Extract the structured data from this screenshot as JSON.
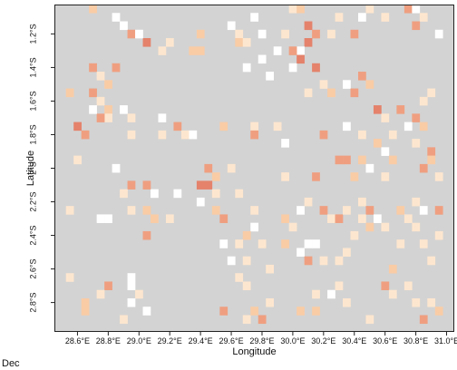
{
  "chart_data": {
    "type": "heatmap",
    "panel_label": "Dec",
    "xlabel": "Longitude",
    "ylabel": "Latitude",
    "xlim": [
      28.45,
      31.05
    ],
    "ylim": [
      -2.975,
      -1.025
    ],
    "grid": false,
    "x_ticks": [
      {
        "value": 28.6,
        "label": "28.6°E"
      },
      {
        "value": 28.8,
        "label": "28.8°E"
      },
      {
        "value": 29.0,
        "label": "29.0°E"
      },
      {
        "value": 29.2,
        "label": "29.2°E"
      },
      {
        "value": 29.4,
        "label": "29.4°E"
      },
      {
        "value": 29.6,
        "label": "29.6°E"
      },
      {
        "value": 29.8,
        "label": "29.8°E"
      },
      {
        "value": 30.0,
        "label": "30.0°E"
      },
      {
        "value": 30.2,
        "label": "30.2°E"
      },
      {
        "value": 30.4,
        "label": "30.4°E"
      },
      {
        "value": 30.6,
        "label": "30.6°E"
      },
      {
        "value": 30.8,
        "label": "30.8°E"
      },
      {
        "value": 31.0,
        "label": "31.0°E"
      }
    ],
    "y_ticks": [
      {
        "value": -1.2,
        "label": "1.2°S"
      },
      {
        "value": -1.4,
        "label": "1.4°S"
      },
      {
        "value": -1.6,
        "label": "1.6°S"
      },
      {
        "value": -1.8,
        "label": "1.8°S"
      },
      {
        "value": -2.0,
        "label": "2°S"
      },
      {
        "value": -2.2,
        "label": "2.2°S"
      },
      {
        "value": -2.4,
        "label": "2.4°S"
      },
      {
        "value": -2.6,
        "label": "2.6°S"
      },
      {
        "value": -2.8,
        "label": "2.8°S"
      }
    ],
    "cell_size_deg": 0.05,
    "background_color": "#d3d3d3",
    "category_colors": {
      "white": "#ffffff",
      "light": "#fde6cf",
      "peach": "#f9cca6",
      "salmon": "#ef9f80",
      "dark": "#e4826b"
    },
    "cells": [
      {
        "lon": 28.7,
        "lat": -1.05,
        "cat": "peach"
      },
      {
        "lon": 28.85,
        "lat": -1.1,
        "cat": "white"
      },
      {
        "lon": 28.9,
        "lat": -1.15,
        "cat": "white"
      },
      {
        "lon": 28.95,
        "lat": -1.2,
        "cat": "salmon"
      },
      {
        "lon": 29.05,
        "lat": -1.25,
        "cat": "dark"
      },
      {
        "lon": 29.15,
        "lat": -1.3,
        "cat": "light"
      },
      {
        "lon": 29.2,
        "lat": -1.25,
        "cat": "light"
      },
      {
        "lon": 29.0,
        "lat": -1.2,
        "cat": "white"
      },
      {
        "lon": 29.35,
        "lat": -1.3,
        "cat": "peach"
      },
      {
        "lon": 29.4,
        "lat": -1.3,
        "cat": "peach"
      },
      {
        "lon": 29.4,
        "lat": -1.2,
        "cat": "peach"
      },
      {
        "lon": 29.6,
        "lat": -1.15,
        "cat": "white"
      },
      {
        "lon": 29.65,
        "lat": -1.2,
        "cat": "light"
      },
      {
        "lon": 29.65,
        "lat": -1.25,
        "cat": "peach"
      },
      {
        "lon": 29.7,
        "lat": -1.25,
        "cat": "light"
      },
      {
        "lon": 29.75,
        "lat": -1.1,
        "cat": "white"
      },
      {
        "lon": 29.8,
        "lat": -1.2,
        "cat": "white"
      },
      {
        "lon": 29.9,
        "lat": -1.3,
        "cat": "white"
      },
      {
        "lon": 29.95,
        "lat": -1.2,
        "cat": "light"
      },
      {
        "lon": 30.0,
        "lat": -1.05,
        "cat": "light"
      },
      {
        "lon": 30.05,
        "lat": -1.05,
        "cat": "peach"
      },
      {
        "lon": 30.1,
        "lat": -1.15,
        "cat": "dark"
      },
      {
        "lon": 30.15,
        "lat": -1.2,
        "cat": "salmon"
      },
      {
        "lon": 30.1,
        "lat": -1.25,
        "cat": "dark"
      },
      {
        "lon": 30.05,
        "lat": -1.3,
        "cat": "white"
      },
      {
        "lon": 30.0,
        "lat": -1.3,
        "cat": "salmon"
      },
      {
        "lon": 30.05,
        "lat": -1.35,
        "cat": "dark"
      },
      {
        "lon": 30.15,
        "lat": -1.4,
        "cat": "dark"
      },
      {
        "lon": 30.25,
        "lat": -1.2,
        "cat": "light"
      },
      {
        "lon": 30.3,
        "lat": -1.1,
        "cat": "light"
      },
      {
        "lon": 30.4,
        "lat": -1.2,
        "cat": "salmon"
      },
      {
        "lon": 30.45,
        "lat": -1.1,
        "cat": "white"
      },
      {
        "lon": 30.5,
        "lat": -1.05,
        "cat": "light"
      },
      {
        "lon": 30.6,
        "lat": -1.1,
        "cat": "light"
      },
      {
        "lon": 30.75,
        "lat": -1.05,
        "cat": "salmon"
      },
      {
        "lon": 30.8,
        "lat": -1.05,
        "cat": "white"
      },
      {
        "lon": 30.85,
        "lat": -1.1,
        "cat": "light"
      },
      {
        "lon": 30.8,
        "lat": -1.15,
        "cat": "salmon"
      },
      {
        "lon": 30.95,
        "lat": -1.2,
        "cat": "white"
      },
      {
        "lon": 30.0,
        "lat": -1.4,
        "cat": "white"
      },
      {
        "lon": 29.7,
        "lat": -1.4,
        "cat": "white"
      },
      {
        "lon": 29.8,
        "lat": -1.35,
        "cat": "white"
      },
      {
        "lon": 29.85,
        "lat": -1.45,
        "cat": "white"
      },
      {
        "lon": 28.7,
        "lat": -1.4,
        "cat": "salmon"
      },
      {
        "lon": 28.75,
        "lat": -1.45,
        "cat": "light"
      },
      {
        "lon": 28.8,
        "lat": -1.5,
        "cat": "peach"
      },
      {
        "lon": 28.85,
        "lat": -1.4,
        "cat": "salmon"
      },
      {
        "lon": 28.7,
        "lat": -1.55,
        "cat": "salmon"
      },
      {
        "lon": 28.75,
        "lat": -1.6,
        "cat": "light"
      },
      {
        "lon": 28.8,
        "lat": -1.65,
        "cat": "peach"
      },
      {
        "lon": 28.8,
        "lat": -1.7,
        "cat": "light"
      },
      {
        "lon": 28.75,
        "lat": -1.7,
        "cat": "salmon"
      },
      {
        "lon": 28.7,
        "lat": -1.65,
        "cat": "white"
      },
      {
        "lon": 28.55,
        "lat": -1.55,
        "cat": "peach"
      },
      {
        "lon": 28.9,
        "lat": -1.65,
        "cat": "white"
      },
      {
        "lon": 28.95,
        "lat": -1.7,
        "cat": "light"
      },
      {
        "lon": 28.6,
        "lat": -1.75,
        "cat": "dark"
      },
      {
        "lon": 28.65,
        "lat": -1.8,
        "cat": "salmon"
      },
      {
        "lon": 28.95,
        "lat": -1.8,
        "cat": "light"
      },
      {
        "lon": 29.15,
        "lat": -1.7,
        "cat": "white"
      },
      {
        "lon": 29.15,
        "lat": -1.8,
        "cat": "light"
      },
      {
        "lon": 29.25,
        "lat": -1.75,
        "cat": "salmon"
      },
      {
        "lon": 29.3,
        "lat": -1.8,
        "cat": "light"
      },
      {
        "lon": 29.35,
        "lat": -1.8,
        "cat": "white"
      },
      {
        "lon": 29.55,
        "lat": -1.75,
        "cat": "peach"
      },
      {
        "lon": 29.75,
        "lat": -1.75,
        "cat": "light"
      },
      {
        "lon": 29.75,
        "lat": -1.8,
        "cat": "salmon"
      },
      {
        "lon": 29.9,
        "lat": -1.75,
        "cat": "light"
      },
      {
        "lon": 29.95,
        "lat": -1.85,
        "cat": "white"
      },
      {
        "lon": 30.1,
        "lat": -1.55,
        "cat": "light"
      },
      {
        "lon": 30.2,
        "lat": -1.5,
        "cat": "light"
      },
      {
        "lon": 30.25,
        "lat": -1.55,
        "cat": "peach"
      },
      {
        "lon": 30.35,
        "lat": -1.5,
        "cat": "white"
      },
      {
        "lon": 30.4,
        "lat": -1.55,
        "cat": "salmon"
      },
      {
        "lon": 30.45,
        "lat": -1.45,
        "cat": "salmon"
      },
      {
        "lon": 30.5,
        "lat": -1.5,
        "cat": "peach"
      },
      {
        "lon": 30.55,
        "lat": -1.65,
        "cat": "dark"
      },
      {
        "lon": 30.6,
        "lat": -1.7,
        "cat": "light"
      },
      {
        "lon": 30.7,
        "lat": -1.65,
        "cat": "salmon"
      },
      {
        "lon": 30.8,
        "lat": -1.7,
        "cat": "salmon"
      },
      {
        "lon": 30.85,
        "lat": -1.6,
        "cat": "light"
      },
      {
        "lon": 30.9,
        "lat": -1.55,
        "cat": "light"
      },
      {
        "lon": 30.75,
        "lat": -1.75,
        "cat": "white"
      },
      {
        "lon": 30.85,
        "lat": -1.75,
        "cat": "peach"
      },
      {
        "lon": 30.35,
        "lat": -1.75,
        "cat": "white"
      },
      {
        "lon": 30.45,
        "lat": -1.8,
        "cat": "light"
      },
      {
        "lon": 30.2,
        "lat": -1.8,
        "cat": "salmon"
      },
      {
        "lon": 30.55,
        "lat": -1.85,
        "cat": "peach"
      },
      {
        "lon": 30.65,
        "lat": -1.8,
        "cat": "light"
      },
      {
        "lon": 30.6,
        "lat": -1.9,
        "cat": "white"
      },
      {
        "lon": 30.8,
        "lat": -1.85,
        "cat": "light"
      },
      {
        "lon": 30.9,
        "lat": -1.9,
        "cat": "salmon"
      },
      {
        "lon": 30.65,
        "lat": -1.95,
        "cat": "peach"
      },
      {
        "lon": 30.3,
        "lat": -1.95,
        "cat": "salmon"
      },
      {
        "lon": 30.35,
        "lat": -1.95,
        "cat": "salmon"
      },
      {
        "lon": 30.45,
        "lat": -1.95,
        "cat": "peach"
      },
      {
        "lon": 30.5,
        "lat": -2.0,
        "cat": "white"
      },
      {
        "lon": 30.85,
        "lat": -2.0,
        "cat": "salmon"
      },
      {
        "lon": 30.9,
        "lat": -1.95,
        "cat": "peach"
      },
      {
        "lon": 30.95,
        "lat": -2.05,
        "cat": "light"
      },
      {
        "lon": 30.6,
        "lat": -2.05,
        "cat": "light"
      },
      {
        "lon": 30.4,
        "lat": -2.05,
        "cat": "peach"
      },
      {
        "lon": 30.15,
        "lat": -2.05,
        "cat": "salmon"
      },
      {
        "lon": 29.95,
        "lat": -2.05,
        "cat": "light"
      },
      {
        "lon": 29.6,
        "lat": -2.0,
        "cat": "light"
      },
      {
        "lon": 29.5,
        "lat": -2.05,
        "cat": "peach"
      },
      {
        "lon": 29.45,
        "lat": -2.0,
        "cat": "salmon"
      },
      {
        "lon": 29.45,
        "lat": -2.1,
        "cat": "dark"
      },
      {
        "lon": 29.4,
        "lat": -2.1,
        "cat": "dark"
      },
      {
        "lon": 29.5,
        "lat": -2.15,
        "cat": "light"
      },
      {
        "lon": 29.25,
        "lat": -2.15,
        "cat": "white"
      },
      {
        "lon": 29.1,
        "lat": -2.15,
        "cat": "white"
      },
      {
        "lon": 29.05,
        "lat": -2.1,
        "cat": "salmon"
      },
      {
        "lon": 28.95,
        "lat": -2.1,
        "cat": "salmon"
      },
      {
        "lon": 28.85,
        "lat": -2.0,
        "cat": "white"
      },
      {
        "lon": 28.9,
        "lat": -2.15,
        "cat": "light"
      },
      {
        "lon": 28.6,
        "lat": -1.95,
        "cat": "light"
      },
      {
        "lon": 28.55,
        "lat": -2.25,
        "cat": "light"
      },
      {
        "lon": 28.75,
        "lat": -2.3,
        "cat": "white"
      },
      {
        "lon": 28.8,
        "lat": -2.3,
        "cat": "white"
      },
      {
        "lon": 28.95,
        "lat": -2.25,
        "cat": "light"
      },
      {
        "lon": 29.05,
        "lat": -2.25,
        "cat": "peach"
      },
      {
        "lon": 29.1,
        "lat": -2.3,
        "cat": "peach"
      },
      {
        "lon": 29.2,
        "lat": -2.3,
        "cat": "light"
      },
      {
        "lon": 29.4,
        "lat": -2.2,
        "cat": "white"
      },
      {
        "lon": 29.5,
        "lat": -2.25,
        "cat": "peach"
      },
      {
        "lon": 29.55,
        "lat": -2.3,
        "cat": "salmon"
      },
      {
        "lon": 29.65,
        "lat": -2.15,
        "cat": "light"
      },
      {
        "lon": 29.75,
        "lat": -2.25,
        "cat": "light"
      },
      {
        "lon": 29.75,
        "lat": -2.35,
        "cat": "white"
      },
      {
        "lon": 29.7,
        "lat": -2.4,
        "cat": "peach"
      },
      {
        "lon": 29.65,
        "lat": -2.45,
        "cat": "light"
      },
      {
        "lon": 29.8,
        "lat": -2.45,
        "cat": "light"
      },
      {
        "lon": 29.95,
        "lat": -2.3,
        "cat": "peach"
      },
      {
        "lon": 30.0,
        "lat": -2.35,
        "cat": "light"
      },
      {
        "lon": 29.95,
        "lat": -2.45,
        "cat": "peach"
      },
      {
        "lon": 30.05,
        "lat": -2.25,
        "cat": "white"
      },
      {
        "lon": 30.1,
        "lat": -2.2,
        "cat": "light"
      },
      {
        "lon": 30.2,
        "lat": -2.25,
        "cat": "salmon"
      },
      {
        "lon": 30.25,
        "lat": -2.3,
        "cat": "light"
      },
      {
        "lon": 30.3,
        "lat": -2.3,
        "cat": "salmon"
      },
      {
        "lon": 30.35,
        "lat": -2.25,
        "cat": "light"
      },
      {
        "lon": 30.45,
        "lat": -2.2,
        "cat": "light"
      },
      {
        "lon": 30.5,
        "lat": -2.25,
        "cat": "salmon"
      },
      {
        "lon": 30.45,
        "lat": -2.3,
        "cat": "light"
      },
      {
        "lon": 30.55,
        "lat": -2.3,
        "cat": "white"
      },
      {
        "lon": 30.5,
        "lat": -2.35,
        "cat": "peach"
      },
      {
        "lon": 30.4,
        "lat": -2.4,
        "cat": "light"
      },
      {
        "lon": 30.6,
        "lat": -2.35,
        "cat": "light"
      },
      {
        "lon": 30.7,
        "lat": -2.25,
        "cat": "peach"
      },
      {
        "lon": 30.75,
        "lat": -2.3,
        "cat": "light"
      },
      {
        "lon": 30.8,
        "lat": -2.2,
        "cat": "light"
      },
      {
        "lon": 30.85,
        "lat": -2.25,
        "cat": "white"
      },
      {
        "lon": 30.95,
        "lat": -2.25,
        "cat": "salmon"
      },
      {
        "lon": 30.8,
        "lat": -2.35,
        "cat": "light"
      },
      {
        "lon": 30.7,
        "lat": -2.45,
        "cat": "light"
      },
      {
        "lon": 30.85,
        "lat": -2.45,
        "cat": "light"
      },
      {
        "lon": 30.95,
        "lat": -2.4,
        "cat": "light"
      },
      {
        "lon": 30.9,
        "lat": -2.55,
        "cat": "light"
      },
      {
        "lon": 30.65,
        "lat": -2.6,
        "cat": "peach"
      },
      {
        "lon": 30.3,
        "lat": -2.55,
        "cat": "light"
      },
      {
        "lon": 30.35,
        "lat": -2.5,
        "cat": "light"
      },
      {
        "lon": 30.1,
        "lat": -2.45,
        "cat": "white"
      },
      {
        "lon": 30.15,
        "lat": -2.45,
        "cat": "white"
      },
      {
        "lon": 30.05,
        "lat": -2.5,
        "cat": "white"
      },
      {
        "lon": 30.1,
        "lat": -2.55,
        "cat": "salmon"
      },
      {
        "lon": 30.2,
        "lat": -2.55,
        "cat": "light"
      },
      {
        "lon": 29.85,
        "lat": -2.6,
        "cat": "light"
      },
      {
        "lon": 29.7,
        "lat": -2.55,
        "cat": "light"
      },
      {
        "lon": 29.6,
        "lat": -2.55,
        "cat": "white"
      },
      {
        "lon": 29.55,
        "lat": -2.45,
        "cat": "white"
      },
      {
        "lon": 29.05,
        "lat": -2.4,
        "cat": "salmon"
      },
      {
        "lon": 28.55,
        "lat": -2.65,
        "cat": "light"
      },
      {
        "lon": 28.8,
        "lat": -2.7,
        "cat": "salmon"
      },
      {
        "lon": 28.75,
        "lat": -2.75,
        "cat": "light"
      },
      {
        "lon": 28.65,
        "lat": -2.8,
        "cat": "peach"
      },
      {
        "lon": 28.65,
        "lat": -2.85,
        "cat": "peach"
      },
      {
        "lon": 28.95,
        "lat": -2.65,
        "cat": "white"
      },
      {
        "lon": 28.95,
        "lat": -2.7,
        "cat": "white"
      },
      {
        "lon": 29.0,
        "lat": -2.75,
        "cat": "light"
      },
      {
        "lon": 28.95,
        "lat": -2.8,
        "cat": "white"
      },
      {
        "lon": 29.05,
        "lat": -2.85,
        "cat": "white"
      },
      {
        "lon": 28.9,
        "lat": -2.9,
        "cat": "light"
      },
      {
        "lon": 29.65,
        "lat": -2.65,
        "cat": "light"
      },
      {
        "lon": 29.7,
        "lat": -2.7,
        "cat": "light"
      },
      {
        "lon": 29.55,
        "lat": -2.85,
        "cat": "salmon"
      },
      {
        "lon": 29.7,
        "lat": -2.9,
        "cat": "light"
      },
      {
        "lon": 29.75,
        "lat": -2.85,
        "cat": "peach"
      },
      {
        "lon": 29.85,
        "lat": -2.8,
        "cat": "light"
      },
      {
        "lon": 29.8,
        "lat": -2.9,
        "cat": "salmon"
      },
      {
        "lon": 30.05,
        "lat": -2.85,
        "cat": "peach"
      },
      {
        "lon": 30.15,
        "lat": -2.75,
        "cat": "light"
      },
      {
        "lon": 30.15,
        "lat": -2.85,
        "cat": "peach"
      },
      {
        "lon": 30.25,
        "lat": -2.75,
        "cat": "white"
      },
      {
        "lon": 30.3,
        "lat": -2.7,
        "cat": "light"
      },
      {
        "lon": 30.35,
        "lat": -2.8,
        "cat": "light"
      },
      {
        "lon": 30.5,
        "lat": -2.9,
        "cat": "light"
      },
      {
        "lon": 30.6,
        "lat": -2.7,
        "cat": "salmon"
      },
      {
        "lon": 30.65,
        "lat": -2.75,
        "cat": "light"
      },
      {
        "lon": 30.75,
        "lat": -2.7,
        "cat": "light"
      },
      {
        "lon": 30.8,
        "lat": -2.8,
        "cat": "light"
      },
      {
        "lon": 30.85,
        "lat": -2.9,
        "cat": "salmon"
      },
      {
        "lon": 30.9,
        "lat": -2.8,
        "cat": "light"
      },
      {
        "lon": 30.95,
        "lat": -2.85,
        "cat": "peach"
      }
    ]
  }
}
